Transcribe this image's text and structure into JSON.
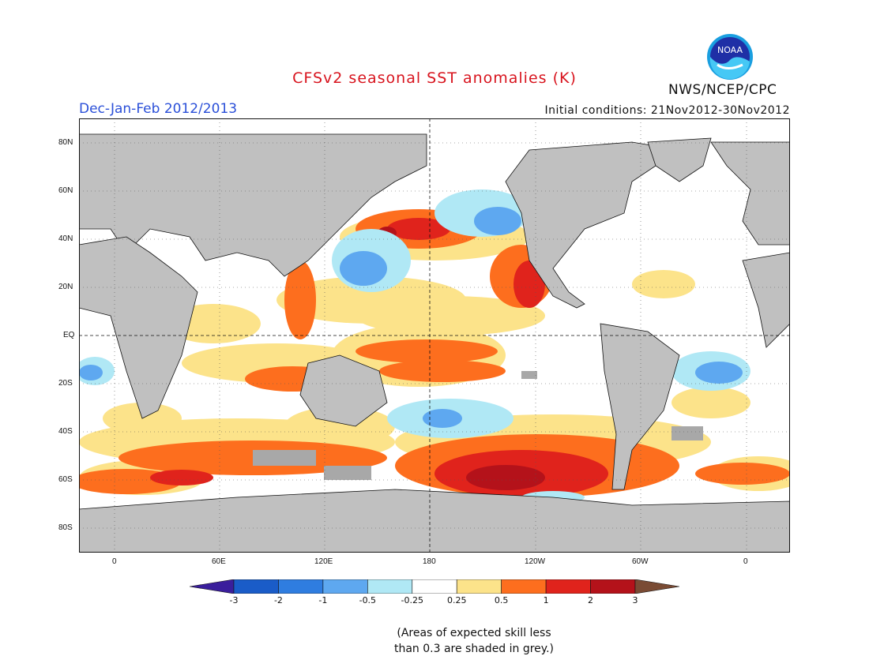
{
  "header": {
    "title": "CFSv2 seasonal SST anomalies (K)",
    "season": "Dec-Jan-Feb 2012/2013",
    "initial_conditions": "Initial conditions: 21Nov2012-30Nov2012",
    "organization": "NWS/NCEP/CPC",
    "logo_text": "NOAA",
    "logo_icon": "noaa-logo-icon"
  },
  "map": {
    "projection": "cylindrical equidistant",
    "lat_labels": [
      "80N",
      "60N",
      "40N",
      "20N",
      "EQ",
      "20S",
      "40S",
      "60S",
      "80S"
    ],
    "lon_labels": [
      "0",
      "60E",
      "120E",
      "180",
      "120W",
      "60W",
      "0"
    ],
    "colors": {
      "land": "#c0c0c0",
      "no_skill": "#a8a8a8",
      "ocean": "#ffffff"
    },
    "features": [
      "Warm anomalies (orange/red) across the Southern Ocean 40S-65S, strongest near 150W-100W",
      "Warm anomalies in the central North Pacific near 40N and along the North American west coast",
      "Cool anomalies (blue) in the western North Pacific and south of Alaska",
      "Weak warm anomaly band along the equatorial Pacific"
    ]
  },
  "colorbar": {
    "ticks": [
      "-3",
      "-2",
      "-1",
      "-0.5",
      "-0.25",
      "0.25",
      "0.5",
      "1",
      "2",
      "3"
    ],
    "colors": [
      "#3a1e9c",
      "#1a5cc8",
      "#2f7de0",
      "#5ea8f0",
      "#b0e8f5",
      "#ffffff",
      "#fce38a",
      "#fd6e1e",
      "#e0231c",
      "#b4121a",
      "#7a4b34"
    ]
  },
  "footnote": {
    "line1": "(Areas of expected skill less",
    "line2": "than 0.3 are shaded in grey.)"
  }
}
